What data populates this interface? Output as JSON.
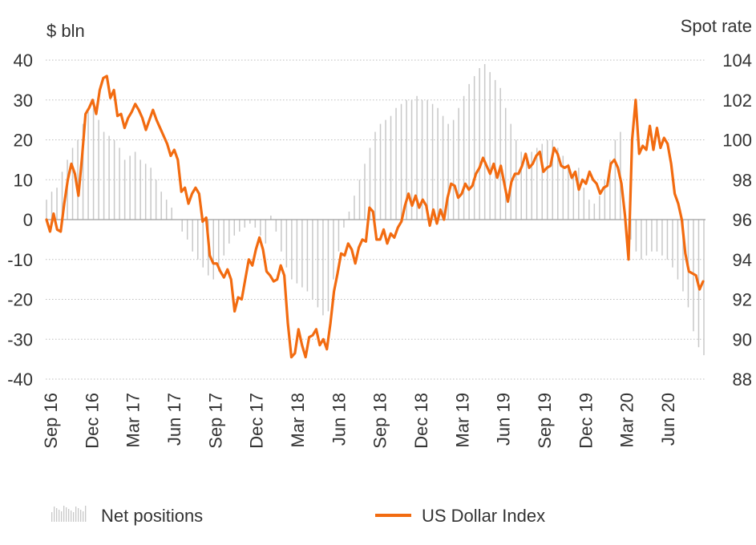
{
  "chart_data": {
    "type": "bar+line",
    "y_left_unit": "$ bln",
    "y_right_unit": "Spot rate",
    "y_left_ticks": [
      "40",
      "30",
      "20",
      "10",
      "0",
      "-10",
      "-20",
      "-30",
      "-40"
    ],
    "y_right_ticks": [
      "104",
      "102",
      "100",
      "98",
      "96",
      "94",
      "92",
      "90",
      "88"
    ],
    "ylim_left": [
      -40,
      40
    ],
    "ylim_right": [
      88,
      104
    ],
    "x_ticks": [
      "Sep 16",
      "Dec 16",
      "Mar 17",
      "Jun 17",
      "Sep 17",
      "Dec 17",
      "Mar 18",
      "Jun 18",
      "Sep 18",
      "Dec 18",
      "Mar 19",
      "Jun 19",
      "Sep 19",
      "Dec 19",
      "Mar 20",
      "Jun 20"
    ],
    "grid": "horizontal dotted",
    "legend_position": "bottom",
    "colors": {
      "bars": "#c8c8c8",
      "line": "#f26b10",
      "grid": "#bdbdbd",
      "zero_line": "#9e9e9e"
    },
    "series": [
      {
        "name": "Net positions",
        "kind": "bar",
        "axis": "left",
        "values": [
          5,
          7,
          8,
          12,
          15,
          18,
          20,
          24,
          27,
          28,
          25,
          22,
          21,
          20,
          18,
          15,
          16,
          17,
          15,
          14,
          13,
          10,
          7,
          5,
          3,
          0,
          -3,
          -5,
          -8,
          -10,
          -12,
          -14,
          -15,
          -13,
          -9,
          -6,
          -4,
          -3,
          -2,
          -1,
          -2,
          -4,
          -6,
          1,
          -3,
          -8,
          -12,
          -15,
          -16,
          -17,
          -18,
          -20,
          -22,
          -24,
          -23,
          -15,
          -8,
          -2,
          2,
          6,
          10,
          14,
          18,
          22,
          24,
          25,
          26,
          28,
          29,
          30,
          30,
          31,
          30,
          30,
          29,
          28,
          26,
          24,
          25,
          28,
          31,
          34,
          36,
          38,
          39,
          37,
          35,
          33,
          28,
          24,
          20,
          17,
          16,
          17,
          18,
          19,
          20,
          20,
          18,
          16,
          14,
          12,
          13,
          8,
          5,
          4,
          6,
          10,
          15,
          20,
          22,
          -1,
          -5,
          -8,
          -10,
          -9,
          -8,
          -8,
          -9,
          -10,
          -12,
          -15,
          -18,
          -22,
          -28,
          -32,
          -34
        ]
      },
      {
        "name": "US Dollar Index",
        "kind": "line",
        "axis": "right",
        "values": [
          96.0,
          95.4,
          96.3,
          95.5,
          95.4,
          96.8,
          98.0,
          98.8,
          98.3,
          97.2,
          99.1,
          101.3,
          101.6,
          102.0,
          101.3,
          102.5,
          103.1,
          103.2,
          102.1,
          102.5,
          101.2,
          101.3,
          100.6,
          101.1,
          101.4,
          101.8,
          101.5,
          101.1,
          100.5,
          101.0,
          101.5,
          101.0,
          100.6,
          100.2,
          99.8,
          99.2,
          99.5,
          99.0,
          97.4,
          97.6,
          96.8,
          97.3,
          97.6,
          97.3,
          95.9,
          96.1,
          94.2,
          93.8,
          93.8,
          93.4,
          93.1,
          93.5,
          93.0,
          91.4,
          92.1,
          92.0,
          93.0,
          94.0,
          93.7,
          94.5,
          95.1,
          94.5,
          93.4,
          93.2,
          92.9,
          93.0,
          93.7,
          93.2,
          90.8,
          89.1,
          89.3,
          90.5,
          89.7,
          89.1,
          90.1,
          90.2,
          90.5,
          89.7,
          90.0,
          89.5,
          90.8,
          92.4,
          93.3,
          94.3,
          94.2,
          94.8,
          94.5,
          93.8,
          94.6,
          95.0,
          94.9,
          96.6,
          96.4,
          95.0,
          95.0,
          95.5,
          94.8,
          95.3,
          95.1,
          95.6,
          95.9,
          96.7,
          97.3,
          96.7,
          97.2,
          96.6,
          97.0,
          96.7,
          95.7,
          96.5,
          95.8,
          96.5,
          96.0,
          97.1,
          97.8,
          97.7,
          97.1,
          97.3,
          97.8,
          97.5,
          97.7,
          98.3,
          98.6,
          99.1,
          98.7,
          98.3,
          98.8,
          98.1,
          98.7,
          97.8,
          96.9,
          97.9,
          98.3,
          98.3,
          98.7,
          99.3,
          98.6,
          98.8,
          99.2,
          99.4,
          98.4,
          98.6,
          98.7,
          99.6,
          99.3,
          98.7,
          98.6,
          98.7,
          98.1,
          98.4,
          97.5,
          98.0,
          97.8,
          98.4,
          98.0,
          97.8,
          97.3,
          97.6,
          97.7,
          98.8,
          99.0,
          98.6,
          97.8,
          96.2,
          94.0,
          100.0,
          102.0,
          99.3,
          99.7,
          99.5,
          100.7,
          99.5,
          100.6,
          99.6,
          100.1,
          99.8,
          98.8,
          97.3,
          96.8,
          96.0,
          94.3,
          93.4,
          93.3,
          93.2,
          92.5,
          92.9
        ]
      }
    ]
  },
  "legend": {
    "net_positions_label": "Net positions",
    "usd_index_label": "US Dollar Index"
  }
}
